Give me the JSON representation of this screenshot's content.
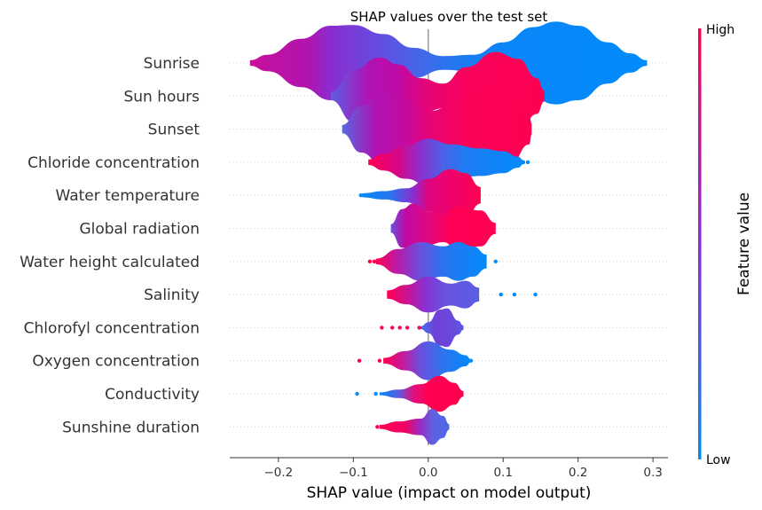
{
  "chart_data": {
    "type": "violin",
    "title": "SHAP values over the test set",
    "xlabel": "SHAP value (impact on model output)",
    "xlim": [
      -0.265,
      0.32
    ],
    "xticks": [
      -0.2,
      -0.1,
      0.0,
      0.1,
      0.2,
      0.3
    ],
    "xtick_labels": [
      "−0.2",
      "−0.1",
      "0.0",
      "0.1",
      "0.2",
      "0.3"
    ],
    "colorbar": {
      "label": "Feature value",
      "high_label": "High",
      "low_label": "Low",
      "high_color": "#ff0051",
      "low_color": "#008bfb"
    },
    "features": [
      {
        "name": "Sunrise",
        "profile": [
          [
            -0.238,
            0.004
          ],
          [
            -0.215,
            0.012
          ],
          [
            -0.17,
            0.035
          ],
          [
            -0.13,
            0.054
          ],
          [
            -0.1,
            0.055
          ],
          [
            -0.06,
            0.042
          ],
          [
            -0.02,
            0.022
          ],
          [
            0.02,
            0.01
          ],
          [
            0.06,
            0.012
          ],
          [
            0.1,
            0.03
          ],
          [
            0.14,
            0.052
          ],
          [
            0.17,
            0.06
          ],
          [
            0.2,
            0.054
          ],
          [
            0.24,
            0.03
          ],
          [
            0.27,
            0.014
          ],
          [
            0.292,
            0.004
          ]
        ],
        "colors": [
          [
            -0.24,
            "#c9109a"
          ],
          [
            -0.16,
            "#b014ae"
          ],
          [
            -0.13,
            "#8a2dd0"
          ],
          [
            -0.06,
            "#6050e2"
          ],
          [
            -0.01,
            "#4468ea"
          ],
          [
            0.04,
            "#2078f0"
          ],
          [
            0.1,
            "#0a86f8"
          ],
          [
            0.3,
            "#008bfb"
          ]
        ],
        "outliers": []
      },
      {
        "name": "Sun hours",
        "profile": [
          [
            -0.13,
            0.006
          ],
          [
            -0.1,
            0.038
          ],
          [
            -0.065,
            0.056
          ],
          [
            -0.04,
            0.046
          ],
          [
            -0.01,
            0.026
          ],
          [
            0.02,
            0.018
          ],
          [
            0.05,
            0.042
          ],
          [
            0.09,
            0.064
          ],
          [
            0.12,
            0.054
          ],
          [
            0.145,
            0.026
          ],
          [
            0.155,
            0.008
          ]
        ],
        "colors": [
          [
            -0.13,
            "#5a60e2"
          ],
          [
            -0.08,
            "#b012b4"
          ],
          [
            -0.04,
            "#c00aa4"
          ],
          [
            0.0,
            "#e60475"
          ],
          [
            0.05,
            "#f8025c"
          ],
          [
            0.16,
            "#ff0051"
          ]
        ],
        "outliers": []
      },
      {
        "name": "Sunset",
        "profile": [
          [
            -0.115,
            0.006
          ],
          [
            -0.09,
            0.034
          ],
          [
            -0.06,
            0.054
          ],
          [
            -0.03,
            0.044
          ],
          [
            0.0,
            0.026
          ],
          [
            0.03,
            0.032
          ],
          [
            0.08,
            0.062
          ],
          [
            0.11,
            0.05
          ],
          [
            0.135,
            0.022
          ],
          [
            0.138,
            0.008
          ]
        ],
        "colors": [
          [
            -0.115,
            "#5868e0"
          ],
          [
            -0.07,
            "#b012b4"
          ],
          [
            -0.03,
            "#c40aa0"
          ],
          [
            0.0,
            "#e60478"
          ],
          [
            0.05,
            "#fa0258"
          ],
          [
            0.14,
            "#ff0051"
          ]
        ],
        "outliers": []
      },
      {
        "name": "Chloride concentration",
        "profile": [
          [
            -0.08,
            0.004
          ],
          [
            -0.06,
            0.012
          ],
          [
            -0.03,
            0.024
          ],
          [
            0.0,
            0.034
          ],
          [
            0.03,
            0.026
          ],
          [
            0.07,
            0.02
          ],
          [
            0.1,
            0.016
          ],
          [
            0.12,
            0.008
          ],
          [
            0.127,
            0.003
          ]
        ],
        "colors": [
          [
            -0.08,
            "#ff0051"
          ],
          [
            -0.04,
            "#d80588"
          ],
          [
            -0.01,
            "#8a30cc"
          ],
          [
            0.02,
            "#4c62e8"
          ],
          [
            0.05,
            "#1e7cf2"
          ],
          [
            0.13,
            "#008bfb"
          ]
        ],
        "outliers": [
          [
            0.127,
            "#008bfb"
          ],
          [
            0.133,
            "#008bfb"
          ]
        ]
      },
      {
        "name": "Water temperature",
        "profile": [
          [
            -0.088,
            0.003
          ],
          [
            -0.06,
            0.006
          ],
          [
            -0.03,
            0.01
          ],
          [
            0.0,
            0.024
          ],
          [
            0.03,
            0.038
          ],
          [
            0.05,
            0.032
          ],
          [
            0.07,
            0.012
          ]
        ],
        "colors": [
          [
            -0.09,
            "#008bfb"
          ],
          [
            -0.05,
            "#2a74ee"
          ],
          [
            -0.02,
            "#8a2dd0"
          ],
          [
            0.0,
            "#e0047e"
          ],
          [
            0.07,
            "#ff0051"
          ]
        ],
        "outliers": [
          [
            -0.09,
            "#008bfb"
          ]
        ]
      },
      {
        "name": "Global radiation",
        "profile": [
          [
            -0.05,
            0.006
          ],
          [
            -0.035,
            0.028
          ],
          [
            -0.02,
            0.036
          ],
          [
            0.0,
            0.024
          ],
          [
            0.02,
            0.02
          ],
          [
            0.04,
            0.032
          ],
          [
            0.07,
            0.026
          ],
          [
            0.09,
            0.008
          ]
        ],
        "colors": [
          [
            -0.05,
            "#6a50de"
          ],
          [
            -0.03,
            "#c00aa4"
          ],
          [
            0.0,
            "#e00680"
          ],
          [
            0.03,
            "#ff0055"
          ],
          [
            0.09,
            "#ff0051"
          ]
        ],
        "outliers": []
      },
      {
        "name": "Water height calculated",
        "profile": [
          [
            -0.07,
            0.004
          ],
          [
            -0.04,
            0.018
          ],
          [
            -0.01,
            0.028
          ],
          [
            0.02,
            0.022
          ],
          [
            0.04,
            0.028
          ],
          [
            0.06,
            0.022
          ],
          [
            0.078,
            0.01
          ]
        ],
        "colors": [
          [
            -0.07,
            "#ff0051"
          ],
          [
            -0.04,
            "#b81caa"
          ],
          [
            -0.01,
            "#6a50de"
          ],
          [
            0.02,
            "#2a74ee"
          ],
          [
            0.08,
            "#008bfb"
          ]
        ],
        "outliers": [
          [
            -0.078,
            "#ff0051"
          ],
          [
            -0.072,
            "#ff0051"
          ],
          [
            0.09,
            "#008bfb"
          ]
        ]
      },
      {
        "name": "Salinity",
        "profile": [
          [
            -0.055,
            0.006
          ],
          [
            -0.03,
            0.014
          ],
          [
            0.0,
            0.026
          ],
          [
            0.03,
            0.016
          ],
          [
            0.05,
            0.02
          ],
          [
            0.068,
            0.01
          ]
        ],
        "colors": [
          [
            -0.055,
            "#ff0051"
          ],
          [
            -0.03,
            "#d0108c"
          ],
          [
            -0.005,
            "#8a30d0"
          ],
          [
            0.02,
            "#6a50de"
          ],
          [
            0.07,
            "#5860e4"
          ]
        ],
        "outliers": [
          [
            0.097,
            "#008bfb"
          ],
          [
            0.115,
            "#008bfb"
          ],
          [
            0.143,
            "#008bfb"
          ]
        ]
      },
      {
        "name": "Chlorofyl concentration",
        "profile": [
          [
            -0.01,
            0.002
          ],
          [
            0.0,
            0.008
          ],
          [
            0.015,
            0.026
          ],
          [
            0.025,
            0.028
          ],
          [
            0.04,
            0.01
          ],
          [
            0.047,
            0.003
          ]
        ],
        "colors": [
          [
            -0.01,
            "#4070ec"
          ],
          [
            0.01,
            "#7040d8"
          ],
          [
            0.03,
            "#6a48dc"
          ],
          [
            0.047,
            "#5858e0"
          ]
        ],
        "outliers": [
          [
            -0.062,
            "#ff0051"
          ],
          [
            -0.048,
            "#ff0051"
          ],
          [
            -0.038,
            "#ff0051"
          ],
          [
            -0.028,
            "#ff0051"
          ],
          [
            -0.012,
            "#ff0051"
          ]
        ]
      },
      {
        "name": "Oxygen concentration",
        "profile": [
          [
            -0.06,
            0.004
          ],
          [
            -0.03,
            0.014
          ],
          [
            0.0,
            0.028
          ],
          [
            0.03,
            0.016
          ],
          [
            0.05,
            0.008
          ],
          [
            0.057,
            0.002
          ]
        ],
        "colors": [
          [
            -0.06,
            "#ff0051"
          ],
          [
            -0.035,
            "#c81898"
          ],
          [
            -0.01,
            "#6a50de"
          ],
          [
            0.02,
            "#2e74ee"
          ],
          [
            0.057,
            "#008bfb"
          ]
        ],
        "outliers": [
          [
            -0.092,
            "#ff0051"
          ],
          [
            -0.065,
            "#ff0051"
          ],
          [
            0.057,
            "#008bfb"
          ]
        ]
      },
      {
        "name": "Conductivity",
        "profile": [
          [
            -0.065,
            0.002
          ],
          [
            -0.04,
            0.006
          ],
          [
            -0.01,
            0.014
          ],
          [
            0.015,
            0.026
          ],
          [
            0.035,
            0.016
          ],
          [
            0.047,
            0.004
          ]
        ],
        "colors": [
          [
            -0.065,
            "#008bfb"
          ],
          [
            -0.04,
            "#5a5ce2"
          ],
          [
            -0.02,
            "#e0107e"
          ],
          [
            0.0,
            "#ff0051"
          ],
          [
            0.047,
            "#ff0051"
          ]
        ],
        "outliers": [
          [
            -0.095,
            "#008bfb"
          ],
          [
            -0.07,
            "#008bfb"
          ]
        ]
      },
      {
        "name": "Sunshine duration",
        "profile": [
          [
            -0.065,
            0.003
          ],
          [
            -0.04,
            0.008
          ],
          [
            -0.01,
            0.012
          ],
          [
            0.005,
            0.026
          ],
          [
            0.02,
            0.016
          ],
          [
            0.028,
            0.004
          ]
        ],
        "colors": [
          [
            -0.065,
            "#ff0051"
          ],
          [
            -0.03,
            "#f00366"
          ],
          [
            -0.01,
            "#9a2cc6"
          ],
          [
            0.005,
            "#6060e0"
          ],
          [
            0.028,
            "#4c6ae6"
          ]
        ],
        "outliers": [
          [
            -0.068,
            "#ff0051"
          ]
        ]
      }
    ]
  }
}
